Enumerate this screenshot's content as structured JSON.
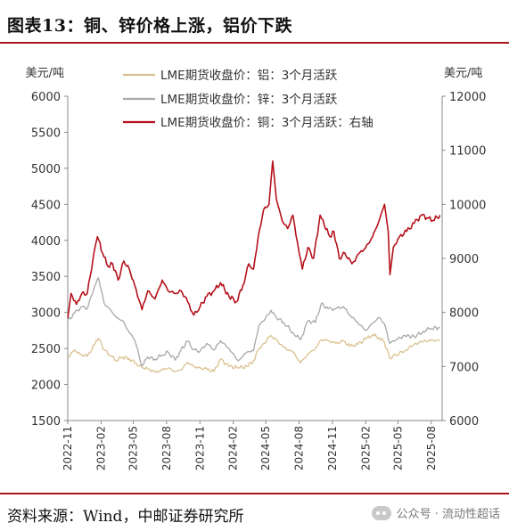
{
  "header": {
    "title": "图表13：铜、锌价格上涨，铝价下跌"
  },
  "footer": {
    "source": "资料来源：Wind，中邮证券研究所",
    "watermark": "公众号 · 流动性超话"
  },
  "colors": {
    "accent": "#a8141d",
    "aluminum": "#d9c08e",
    "zinc": "#a8a8a8",
    "copper": "#b5121b"
  },
  "chart_data": {
    "type": "line",
    "left_unit": "美元/吨",
    "right_unit": "美元/吨",
    "yleft_lim": [
      1500,
      6000
    ],
    "yleft_ticks": [
      "6000",
      "5500",
      "5000",
      "4500",
      "4000",
      "3500",
      "3000",
      "2500",
      "2000",
      "1500"
    ],
    "yright_lim": [
      6000,
      12000
    ],
    "yright_ticks": [
      "12000",
      "11000",
      "10000",
      "9000",
      "8000",
      "7000",
      "6000"
    ],
    "x_range": [
      "2022-11-01",
      "2025-08-31"
    ],
    "x_ticks": [
      "2022-11",
      "2023-02",
      "2023-05",
      "2023-08",
      "2023-11",
      "2024-02",
      "2024-05",
      "2024-08",
      "2024-11",
      "2025-02",
      "2025-05",
      "2025-08"
    ],
    "grid": false,
    "legend_position": "top-center",
    "series": [
      {
        "name": "LME期货收盘价：铝：3个月活跃",
        "axis": "left",
        "points": [
          [
            "2022-11-01",
            2370
          ],
          [
            "2022-11-20",
            2480
          ],
          [
            "2022-12-05",
            2420
          ],
          [
            "2022-12-25",
            2390
          ],
          [
            "2023-01-15",
            2560
          ],
          [
            "2023-01-25",
            2640
          ],
          [
            "2023-02-10",
            2480
          ],
          [
            "2023-02-28",
            2400
          ],
          [
            "2023-03-15",
            2330
          ],
          [
            "2023-04-01",
            2380
          ],
          [
            "2023-04-20",
            2360
          ],
          [
            "2023-05-10",
            2290
          ],
          [
            "2023-05-25",
            2240
          ],
          [
            "2023-06-10",
            2220
          ],
          [
            "2023-06-30",
            2170
          ],
          [
            "2023-07-20",
            2200
          ],
          [
            "2023-08-05",
            2230
          ],
          [
            "2023-08-25",
            2180
          ],
          [
            "2023-09-10",
            2200
          ],
          [
            "2023-09-28",
            2310
          ],
          [
            "2023-10-15",
            2250
          ],
          [
            "2023-11-01",
            2230
          ],
          [
            "2023-11-20",
            2210
          ],
          [
            "2023-12-10",
            2180
          ],
          [
            "2023-12-28",
            2350
          ],
          [
            "2024-01-20",
            2250
          ],
          [
            "2024-02-15",
            2230
          ],
          [
            "2024-03-10",
            2250
          ],
          [
            "2024-03-28",
            2330
          ],
          [
            "2024-04-12",
            2500
          ],
          [
            "2024-04-25",
            2570
          ],
          [
            "2024-05-15",
            2680
          ],
          [
            "2024-05-30",
            2620
          ],
          [
            "2024-06-20",
            2510
          ],
          [
            "2024-07-15",
            2450
          ],
          [
            "2024-08-05",
            2300
          ],
          [
            "2024-08-25",
            2420
          ],
          [
            "2024-09-15",
            2500
          ],
          [
            "2024-10-01",
            2620
          ],
          [
            "2024-10-20",
            2610
          ],
          [
            "2024-11-10",
            2570
          ],
          [
            "2024-12-01",
            2600
          ],
          [
            "2024-12-20",
            2530
          ],
          [
            "2025-01-10",
            2560
          ],
          [
            "2025-02-01",
            2630
          ],
          [
            "2025-02-20",
            2690
          ],
          [
            "2025-03-10",
            2650
          ],
          [
            "2025-03-25",
            2580
          ],
          [
            "2025-04-08",
            2370
          ],
          [
            "2025-04-25",
            2410
          ],
          [
            "2025-05-20",
            2470
          ],
          [
            "2025-06-15",
            2560
          ],
          [
            "2025-07-10",
            2600
          ],
          [
            "2025-07-30",
            2610
          ],
          [
            "2025-08-25",
            2610
          ]
        ]
      },
      {
        "name": "LME期货收盘价：锌：3个月活跃",
        "axis": "left",
        "points": [
          [
            "2022-11-01",
            2880
          ],
          [
            "2022-11-20",
            2990
          ],
          [
            "2022-12-10",
            3080
          ],
          [
            "2022-12-25",
            3050
          ],
          [
            "2023-01-15",
            3380
          ],
          [
            "2023-01-25",
            3480
          ],
          [
            "2023-02-10",
            3120
          ],
          [
            "2023-02-28",
            3030
          ],
          [
            "2023-03-15",
            2930
          ],
          [
            "2023-04-01",
            2890
          ],
          [
            "2023-04-20",
            2720
          ],
          [
            "2023-05-05",
            2620
          ],
          [
            "2023-05-25",
            2260
          ],
          [
            "2023-06-10",
            2380
          ],
          [
            "2023-06-30",
            2350
          ],
          [
            "2023-07-20",
            2410
          ],
          [
            "2023-08-05",
            2450
          ],
          [
            "2023-08-25",
            2340
          ],
          [
            "2023-09-10",
            2480
          ],
          [
            "2023-09-28",
            2600
          ],
          [
            "2023-10-15",
            2480
          ],
          [
            "2023-11-01",
            2460
          ],
          [
            "2023-11-20",
            2570
          ],
          [
            "2023-12-10",
            2480
          ],
          [
            "2023-12-28",
            2610
          ],
          [
            "2024-01-20",
            2500
          ],
          [
            "2024-02-15",
            2330
          ],
          [
            "2024-03-10",
            2450
          ],
          [
            "2024-03-28",
            2470
          ],
          [
            "2024-04-12",
            2820
          ],
          [
            "2024-04-25",
            2880
          ],
          [
            "2024-05-15",
            3030
          ],
          [
            "2024-05-30",
            2930
          ],
          [
            "2024-06-20",
            2860
          ],
          [
            "2024-07-15",
            2720
          ],
          [
            "2024-08-05",
            2620
          ],
          [
            "2024-08-25",
            2880
          ],
          [
            "2024-09-15",
            2860
          ],
          [
            "2024-10-01",
            3120
          ],
          [
            "2024-10-20",
            3050
          ],
          [
            "2024-11-10",
            3050
          ],
          [
            "2024-12-01",
            3080
          ],
          [
            "2024-12-20",
            2960
          ],
          [
            "2025-01-10",
            2860
          ],
          [
            "2025-02-01",
            2750
          ],
          [
            "2025-02-20",
            2850
          ],
          [
            "2025-03-10",
            2930
          ],
          [
            "2025-03-25",
            2840
          ],
          [
            "2025-04-08",
            2570
          ],
          [
            "2025-04-25",
            2620
          ],
          [
            "2025-05-20",
            2680
          ],
          [
            "2025-06-15",
            2660
          ],
          [
            "2025-07-10",
            2740
          ],
          [
            "2025-07-30",
            2780
          ],
          [
            "2025-08-25",
            2790
          ]
        ]
      },
      {
        "name": "LME期货收盘价：铜：3个月活跃：右轴",
        "axis": "right",
        "points": [
          [
            "2022-11-01",
            7900
          ],
          [
            "2022-11-10",
            8350
          ],
          [
            "2022-11-25",
            8150
          ],
          [
            "2022-12-10",
            8350
          ],
          [
            "2022-12-25",
            8350
          ],
          [
            "2023-01-10",
            9000
          ],
          [
            "2023-01-22",
            9400
          ],
          [
            "2023-02-05",
            9100
          ],
          [
            "2023-02-20",
            8850
          ],
          [
            "2023-03-05",
            8900
          ],
          [
            "2023-03-20",
            8600
          ],
          [
            "2023-04-05",
            8950
          ],
          [
            "2023-04-20",
            8800
          ],
          [
            "2023-05-05",
            8500
          ],
          [
            "2023-05-25",
            8050
          ],
          [
            "2023-06-10",
            8400
          ],
          [
            "2023-06-30",
            8250
          ],
          [
            "2023-07-20",
            8600
          ],
          [
            "2023-08-05",
            8400
          ],
          [
            "2023-08-25",
            8350
          ],
          [
            "2023-09-10",
            8400
          ],
          [
            "2023-09-28",
            8200
          ],
          [
            "2023-10-15",
            7950
          ],
          [
            "2023-11-01",
            8100
          ],
          [
            "2023-11-20",
            8300
          ],
          [
            "2023-12-10",
            8400
          ],
          [
            "2023-12-28",
            8550
          ],
          [
            "2024-01-20",
            8300
          ],
          [
            "2024-02-10",
            8200
          ],
          [
            "2024-02-28",
            8500
          ],
          [
            "2024-03-15",
            8900
          ],
          [
            "2024-03-28",
            8800
          ],
          [
            "2024-04-10",
            9400
          ],
          [
            "2024-04-25",
            9900
          ],
          [
            "2024-05-10",
            10000
          ],
          [
            "2024-05-20",
            10800
          ],
          [
            "2024-05-30",
            10100
          ],
          [
            "2024-06-15",
            9700
          ],
          [
            "2024-06-30",
            9550
          ],
          [
            "2024-07-15",
            9800
          ],
          [
            "2024-08-01",
            9100
          ],
          [
            "2024-08-10",
            8800
          ],
          [
            "2024-08-25",
            9200
          ],
          [
            "2024-09-10",
            9000
          ],
          [
            "2024-09-28",
            9800
          ],
          [
            "2024-10-10",
            9600
          ],
          [
            "2024-10-25",
            9400
          ],
          [
            "2024-11-05",
            9500
          ],
          [
            "2024-11-20",
            9000
          ],
          [
            "2024-12-05",
            9100
          ],
          [
            "2024-12-25",
            8900
          ],
          [
            "2025-01-15",
            9100
          ],
          [
            "2025-02-01",
            9200
          ],
          [
            "2025-02-20",
            9400
          ],
          [
            "2025-03-10",
            9700
          ],
          [
            "2025-03-25",
            10000
          ],
          [
            "2025-04-04",
            9500
          ],
          [
            "2025-04-09",
            8700
          ],
          [
            "2025-04-18",
            9200
          ],
          [
            "2025-05-05",
            9400
          ],
          [
            "2025-05-25",
            9500
          ],
          [
            "2025-06-15",
            9650
          ],
          [
            "2025-07-05",
            9800
          ],
          [
            "2025-07-20",
            9750
          ],
          [
            "2025-08-05",
            9700
          ],
          [
            "2025-08-25",
            9800
          ]
        ]
      }
    ]
  }
}
